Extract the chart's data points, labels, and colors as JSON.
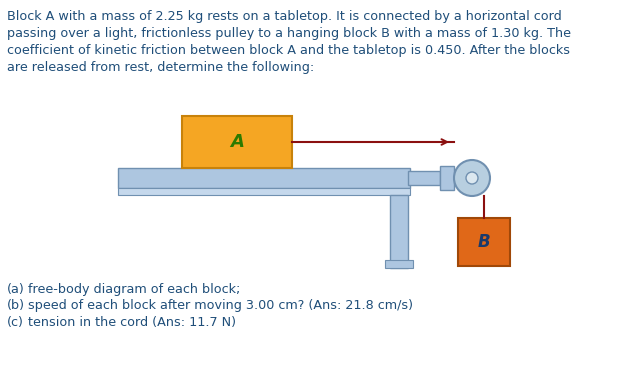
{
  "bg_color": "#ffffff",
  "text_color": "#1f4e79",
  "header_lines": [
    "Block A with a mass of 2.25 kg rests on a tabletop. It is connected by a horizontal cord",
    "passing over a light, frictionless pulley to a hanging block B with a mass of 1.30 kg. The",
    "coefficient of kinetic friction between block A and the tabletop is 0.450. After the blocks",
    "are released from rest, determine the following:"
  ],
  "footer_lines": [
    [
      "(a)",
      "free-body diagram of each block;"
    ],
    [
      "(b)",
      "speed of each block after moving 3.00 cm? (Ans: 21.8 cm/s)"
    ],
    [
      "(c)",
      "tension in the cord (Ans: 11.7 N)"
    ]
  ],
  "block_A_color": "#f5a623",
  "block_A_edge": "#c8820a",
  "block_A_label": "A",
  "block_A_label_color": "#2d7a00",
  "block_B_color": "#e06818",
  "block_B_edge": "#a04808",
  "block_B_label": "B",
  "block_B_label_color": "#1a3a6b",
  "table_color": "#adc6e0",
  "table_edge": "#7090b0",
  "stand_color": "#adc6e0",
  "stand_edge": "#7090b0",
  "pulley_outer_color": "#b8cfe0",
  "pulley_inner_color": "#dce8f0",
  "pulley_edge": "#7090b0",
  "cord_color": "#8b1010",
  "font_size_header": 9.2,
  "font_size_footer": 9.2,
  "font_size_label": 13
}
